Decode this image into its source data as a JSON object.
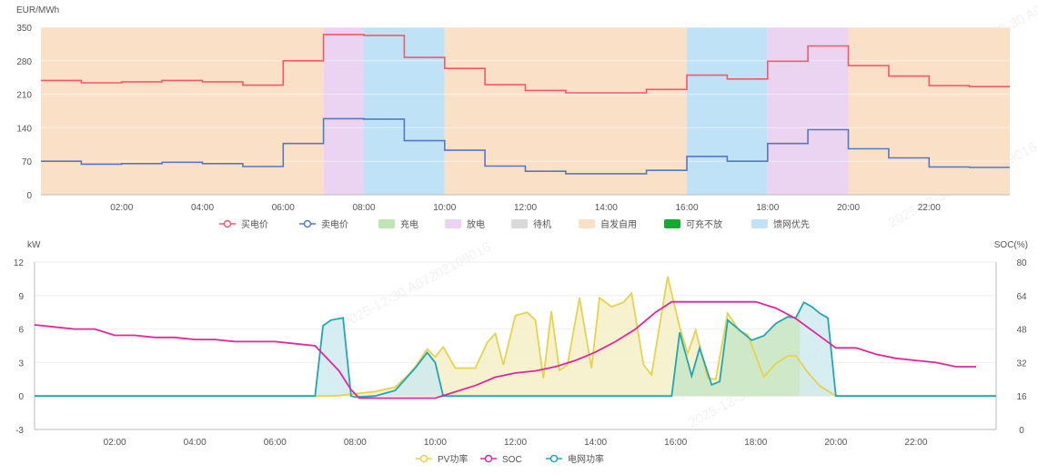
{
  "watermark": "2025-12-30 A07202109016",
  "colors": {
    "buy_price": "#f05a6a",
    "sell_price": "#5578c0",
    "charge": "#bfe5b4",
    "discharge": "#ead4f2",
    "standby": "#d9d9d9",
    "self_use": "#fbe0c8",
    "charge_no_discharge": "#16a832",
    "grid_priority": "#bfe2f7",
    "pv": "#e6d34c",
    "pv_fill": "#f5f0c8",
    "soc": "#e0289c",
    "grid": "#22a6b3",
    "grid_fill": "#cfeaee",
    "grid_green_fill": "#cde8c4",
    "axis": "#bbbbbb",
    "grid_line": "#eeeeee"
  },
  "chart_data": [
    {
      "type": "line",
      "step": true,
      "ylabel": "EUR/MWh",
      "ylim": [
        0,
        350
      ],
      "yticks": [
        "0",
        "70",
        "140",
        "210",
        "280",
        "350"
      ],
      "xlim": [
        0,
        24
      ],
      "xticks": [
        {
          "t": 2,
          "label": "02:00"
        },
        {
          "t": 4,
          "label": "04:00"
        },
        {
          "t": 6,
          "label": "06:00"
        },
        {
          "t": 8,
          "label": "08:00"
        },
        {
          "t": 10,
          "label": "10:00"
        },
        {
          "t": 12,
          "label": "12:00"
        },
        {
          "t": 14,
          "label": "14:00"
        },
        {
          "t": 16,
          "label": "16:00"
        },
        {
          "t": 18,
          "label": "18:00"
        },
        {
          "t": 20,
          "label": "20:00"
        },
        {
          "t": 22,
          "label": "22:00"
        }
      ],
      "mode_bands": [
        {
          "mode": "self_use",
          "start": 0,
          "end": 7
        },
        {
          "mode": "discharge",
          "start": 7,
          "end": 8
        },
        {
          "mode": "grid_priority",
          "start": 8,
          "end": 10
        },
        {
          "mode": "self_use",
          "start": 10,
          "end": 16
        },
        {
          "mode": "grid_priority",
          "start": 16,
          "end": 18
        },
        {
          "mode": "discharge",
          "start": 18,
          "end": 20
        },
        {
          "mode": "self_use",
          "start": 20,
          "end": 24
        }
      ],
      "series": [
        {
          "name": "买电价",
          "color_key": "buy_price",
          "hours": [
            0,
            1,
            2,
            3,
            4,
            5,
            6,
            7,
            8,
            9,
            10,
            11,
            12,
            13,
            14,
            15,
            16,
            17,
            18,
            19,
            20,
            21,
            22,
            23
          ],
          "values": [
            239,
            234,
            236,
            239,
            236,
            229,
            280,
            335,
            333,
            287,
            264,
            230,
            218,
            213,
            213,
            220,
            250,
            242,
            279,
            311,
            270,
            248,
            228,
            226
          ]
        },
        {
          "name": "卖电价",
          "color_key": "sell_price",
          "hours": [
            0,
            1,
            2,
            3,
            4,
            5,
            6,
            7,
            8,
            9,
            10,
            11,
            12,
            13,
            14,
            15,
            16,
            17,
            18,
            19,
            20,
            21,
            22,
            23
          ],
          "values": [
            70,
            64,
            65,
            68,
            65,
            59,
            107,
            159,
            158,
            113,
            93,
            60,
            49,
            44,
            44,
            51,
            80,
            70,
            107,
            136,
            96,
            77,
            58,
            57
          ]
        }
      ],
      "legend": [
        {
          "label": "买电价",
          "color_key": "buy_price",
          "kind": "line"
        },
        {
          "label": "卖电价",
          "color_key": "sell_price",
          "kind": "line"
        },
        {
          "label": "充电",
          "color_key": "charge",
          "kind": "box"
        },
        {
          "label": "放电",
          "color_key": "discharge",
          "kind": "box"
        },
        {
          "label": "待机",
          "color_key": "standby",
          "kind": "box"
        },
        {
          "label": "自发自用",
          "color_key": "self_use",
          "kind": "box"
        },
        {
          "label": "可充不放",
          "color_key": "charge_no_discharge",
          "kind": "box"
        },
        {
          "label": "馈网优先",
          "color_key": "grid_priority",
          "kind": "box"
        }
      ]
    },
    {
      "type": "area",
      "ylabel_left": "kW",
      "ylabel_right": "SOC(%)",
      "ylim_left": [
        -3,
        12
      ],
      "ylim_right": [
        0,
        80
      ],
      "yticks_left": [
        "-3",
        "0",
        "3",
        "6",
        "9",
        "12"
      ],
      "yticks_right": [
        "0",
        "16",
        "32",
        "48",
        "64",
        "80"
      ],
      "xlim": [
        0,
        24
      ],
      "xticks": [
        {
          "t": 2,
          "label": "02:00"
        },
        {
          "t": 4,
          "label": "04:00"
        },
        {
          "t": 6,
          "label": "06:00"
        },
        {
          "t": 8,
          "label": "08:00"
        },
        {
          "t": 10,
          "label": "10:00"
        },
        {
          "t": 12,
          "label": "12:00"
        },
        {
          "t": 14,
          "label": "14:00"
        },
        {
          "t": 16,
          "label": "16:00"
        },
        {
          "t": 18,
          "label": "18:00"
        },
        {
          "t": 20,
          "label": "20:00"
        },
        {
          "t": 22,
          "label": "22:00"
        }
      ],
      "series": [
        {
          "name": "PV功率",
          "color_key": "pv",
          "fill_key": "pv_fill",
          "axis": "left",
          "points": [
            [
              0,
              0
            ],
            [
              7.5,
              0
            ],
            [
              8.0,
              0.2
            ],
            [
              8.5,
              0.4
            ],
            [
              9.0,
              0.8
            ],
            [
              9.3,
              1.8
            ],
            [
              9.5,
              2.6
            ],
            [
              9.8,
              4.2
            ],
            [
              10.0,
              3.5
            ],
            [
              10.2,
              4.4
            ],
            [
              10.5,
              2.5
            ],
            [
              11.0,
              2.5
            ],
            [
              11.3,
              4.8
            ],
            [
              11.5,
              5.6
            ],
            [
              11.7,
              2.8
            ],
            [
              12.0,
              7.2
            ],
            [
              12.3,
              7.5
            ],
            [
              12.5,
              6.8
            ],
            [
              12.7,
              1.6
            ],
            [
              12.9,
              7.6
            ],
            [
              13.1,
              2.3
            ],
            [
              13.3,
              2.8
            ],
            [
              13.6,
              8.8
            ],
            [
              13.9,
              2.5
            ],
            [
              14.1,
              8.8
            ],
            [
              14.4,
              8.0
            ],
            [
              14.7,
              8.4
            ],
            [
              14.9,
              9.2
            ],
            [
              15.2,
              2.8
            ],
            [
              15.4,
              1.9
            ],
            [
              15.8,
              10.7
            ],
            [
              16.1,
              6.2
            ],
            [
              16.3,
              3.8
            ],
            [
              16.5,
              5.9
            ],
            [
              16.8,
              1.6
            ],
            [
              17.0,
              1.5
            ],
            [
              17.3,
              7.4
            ],
            [
              17.6,
              5.8
            ],
            [
              17.8,
              5.5
            ],
            [
              18.2,
              1.7
            ],
            [
              18.5,
              2.9
            ],
            [
              18.8,
              3.6
            ],
            [
              19.0,
              3.6
            ],
            [
              19.3,
              2.1
            ],
            [
              19.6,
              0.9
            ],
            [
              20.0,
              0
            ],
            [
              24,
              0
            ]
          ]
        },
        {
          "name": "SOC",
          "color_key": "soc",
          "axis": "right",
          "points": [
            [
              0,
              50
            ],
            [
              0.5,
              49
            ],
            [
              1.0,
              48
            ],
            [
              1.5,
              48
            ],
            [
              2.0,
              45
            ],
            [
              2.5,
              45
            ],
            [
              3.0,
              44
            ],
            [
              3.5,
              44
            ],
            [
              4.0,
              43
            ],
            [
              4.5,
              43
            ],
            [
              5.0,
              42
            ],
            [
              5.5,
              42
            ],
            [
              6.0,
              42
            ],
            [
              6.5,
              41
            ],
            [
              7.0,
              40
            ],
            [
              7.3,
              34
            ],
            [
              7.6,
              28
            ],
            [
              7.9,
              19
            ],
            [
              8.1,
              15
            ],
            [
              8.5,
              15
            ],
            [
              9.0,
              15
            ],
            [
              9.5,
              15
            ],
            [
              10.0,
              15
            ],
            [
              10.5,
              18
            ],
            [
              11.0,
              21
            ],
            [
              11.5,
              25
            ],
            [
              12.0,
              27
            ],
            [
              12.5,
              28
            ],
            [
              13.0,
              30
            ],
            [
              13.5,
              33
            ],
            [
              14.0,
              37
            ],
            [
              14.5,
              42
            ],
            [
              15.0,
              48
            ],
            [
              15.5,
              56
            ],
            [
              15.9,
              61
            ],
            [
              16.5,
              61
            ],
            [
              17.0,
              61
            ],
            [
              17.5,
              61
            ],
            [
              18.0,
              61
            ],
            [
              18.5,
              58
            ],
            [
              19.0,
              53
            ],
            [
              19.5,
              46
            ],
            [
              20.0,
              39
            ],
            [
              20.5,
              39
            ],
            [
              21.0,
              36
            ],
            [
              21.5,
              34
            ],
            [
              22.0,
              33
            ],
            [
              22.5,
              32
            ],
            [
              23.0,
              30
            ],
            [
              23.5,
              30
            ]
          ]
        },
        {
          "name": "电网功率",
          "color_key": "grid",
          "fill_key": "grid_fill",
          "axis": "left",
          "points": [
            [
              0,
              0
            ],
            [
              7.0,
              0
            ],
            [
              7.2,
              6.3
            ],
            [
              7.4,
              6.8
            ],
            [
              7.7,
              7.0
            ],
            [
              7.9,
              0
            ],
            [
              8.0,
              -0.1
            ],
            [
              8.5,
              0
            ],
            [
              9.0,
              0.5
            ],
            [
              9.5,
              2.5
            ],
            [
              9.8,
              3.9
            ],
            [
              10.0,
              3.0
            ],
            [
              10.2,
              0
            ],
            [
              11.0,
              0
            ],
            [
              12.0,
              0
            ],
            [
              13.0,
              0
            ],
            [
              14.0,
              0
            ],
            [
              15.0,
              0
            ],
            [
              15.9,
              0
            ],
            [
              16.1,
              5.7
            ],
            [
              16.4,
              1.8
            ],
            [
              16.6,
              4.3
            ],
            [
              16.9,
              1.0
            ],
            [
              17.1,
              1.3
            ],
            [
              17.3,
              6.8
            ],
            [
              17.6,
              5.9
            ],
            [
              17.9,
              5.0
            ],
            [
              18.2,
              5.4
            ],
            [
              18.5,
              6.5
            ],
            [
              18.8,
              7.1
            ],
            [
              19.0,
              7.0
            ],
            [
              19.2,
              8.4
            ],
            [
              19.4,
              8.0
            ],
            [
              19.6,
              7.4
            ],
            [
              19.8,
              7.0
            ],
            [
              20.0,
              0
            ],
            [
              24,
              0
            ]
          ]
        }
      ],
      "legend": [
        {
          "label": "PV功率",
          "color_key": "pv"
        },
        {
          "label": "SOC",
          "color_key": "soc"
        },
        {
          "label": "电网功率",
          "color_key": "grid"
        }
      ]
    }
  ]
}
